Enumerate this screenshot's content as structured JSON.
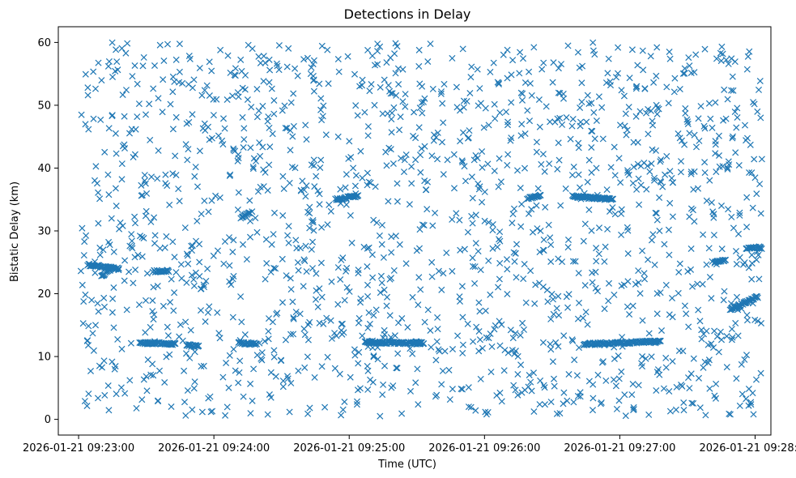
{
  "chart_data": {
    "type": "scatter",
    "title": "Detections in Delay",
    "xlabel": "Time (UTC)",
    "ylabel": "Bistatic Delay (km)",
    "xlim": [
      "2026-01-21 09:22:51",
      "2026-01-21 09:28:07"
    ],
    "ylim": [
      -2.5,
      62.5
    ],
    "x_ticks": [
      "2026-01-21 09:23:00",
      "2026-01-21 09:24:00",
      "2026-01-21 09:25:00",
      "2026-01-21 09:26:00",
      "2026-01-21 09:27:00",
      "2026-01-21 09:28:00"
    ],
    "y_ticks": [
      "0",
      "10",
      "20",
      "30",
      "40",
      "50",
      "60"
    ],
    "grid": false,
    "marker": "x",
    "marker_color": "#1f77b4",
    "tracks": [
      {
        "x_start": "2026-01-21 09:23:04",
        "x_end": "2026-01-21 09:23:18",
        "y_start": 24.6,
        "y_end": 24.0
      },
      {
        "x_start": "2026-01-21 09:23:10",
        "x_end": "2026-01-21 09:23:14",
        "y_start": 22.8,
        "y_end": 23.8
      },
      {
        "x_start": "2026-01-21 09:23:27",
        "x_end": "2026-01-21 09:23:43",
        "y_start": 12.2,
        "y_end": 12.0
      },
      {
        "x_start": "2026-01-21 09:23:33",
        "x_end": "2026-01-21 09:23:40",
        "y_start": 23.6,
        "y_end": 23.6
      },
      {
        "x_start": "2026-01-21 09:23:48",
        "x_end": "2026-01-21 09:23:53",
        "y_start": 11.8,
        "y_end": 11.6
      },
      {
        "x_start": "2026-01-21 09:24:11",
        "x_end": "2026-01-21 09:24:19",
        "y_start": 12.2,
        "y_end": 12.0
      },
      {
        "x_start": "2026-01-21 09:24:12",
        "x_end": "2026-01-21 09:24:16",
        "y_start": 32.0,
        "y_end": 33.0
      },
      {
        "x_start": "2026-01-21 09:24:54",
        "x_end": "2026-01-21 09:25:04",
        "y_start": 35.0,
        "y_end": 35.6
      },
      {
        "x_start": "2026-01-21 09:25:07",
        "x_end": "2026-01-21 09:25:33",
        "y_start": 12.3,
        "y_end": 12.1
      },
      {
        "x_start": "2026-01-21 09:25:29",
        "x_end": "2026-01-21 09:25:32",
        "y_start": 12.3,
        "y_end": 12.1
      },
      {
        "x_start": "2026-01-21 09:26:19",
        "x_end": "2026-01-21 09:26:25",
        "y_start": 35.2,
        "y_end": 35.6
      },
      {
        "x_start": "2026-01-21 09:26:39",
        "x_end": "2026-01-21 09:26:57",
        "y_start": 35.5,
        "y_end": 35.0
      },
      {
        "x_start": "2026-01-21 09:26:44",
        "x_end": "2026-01-21 09:27:18",
        "y_start": 12.0,
        "y_end": 12.4
      },
      {
        "x_start": "2026-01-21 09:27:49",
        "x_end": "2026-01-21 09:28:01",
        "y_start": 17.5,
        "y_end": 19.5
      },
      {
        "x_start": "2026-01-21 09:27:56",
        "x_end": "2026-01-21 09:28:03",
        "y_start": 27.3,
        "y_end": 27.3
      },
      {
        "x_start": "2026-01-21 09:27:42",
        "x_end": "2026-01-21 09:27:47",
        "y_start": 25.0,
        "y_end": 25.3
      }
    ],
    "clutter": {
      "x_start": "2026-01-21 09:23:01",
      "x_end": "2026-01-21 09:28:03",
      "y_range": [
        0.5,
        60.0
      ],
      "count": 1650
    }
  }
}
